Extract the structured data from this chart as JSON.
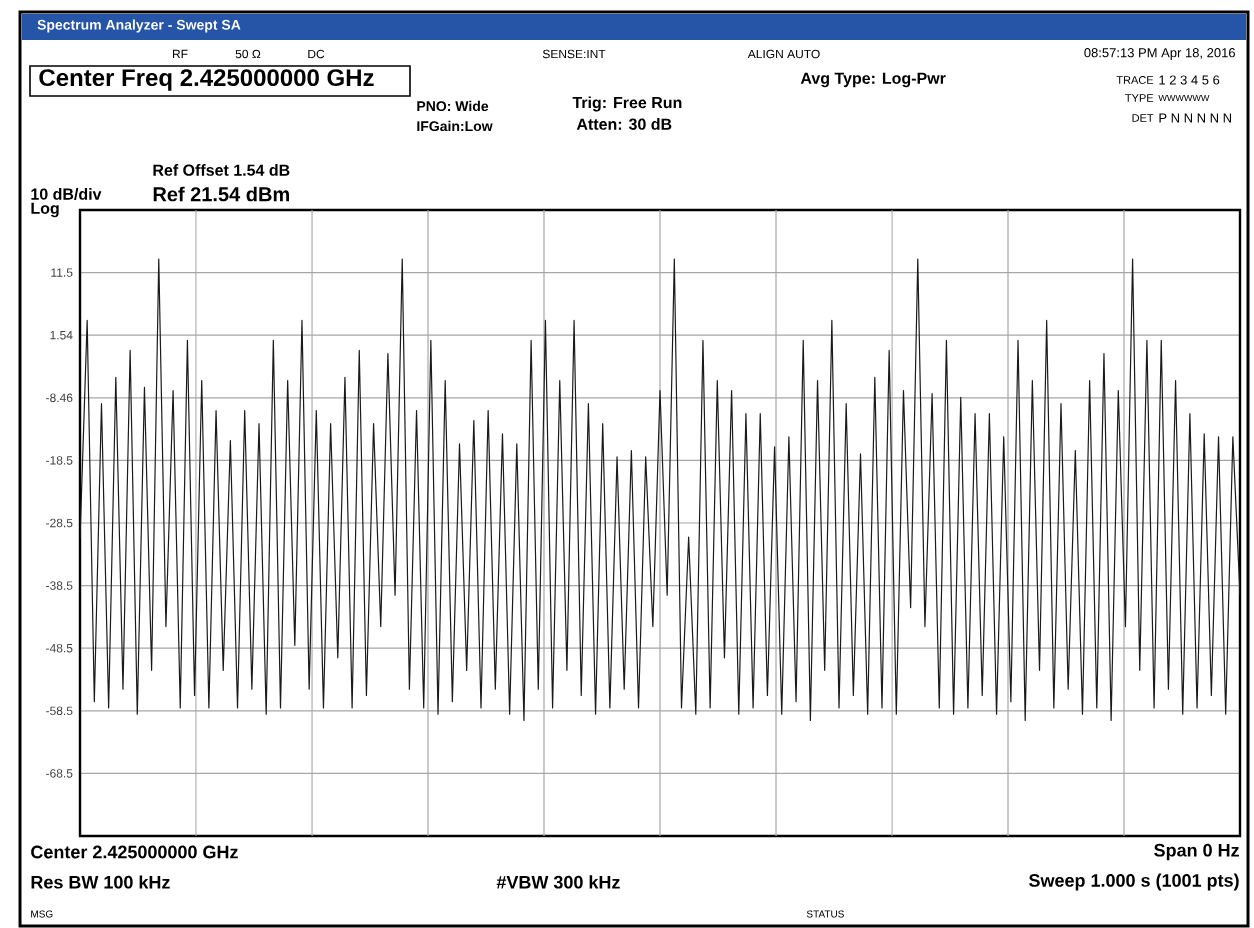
{
  "chart_data": {
    "type": "line",
    "title": "Spectrum Analyzer - Swept SA",
    "annotations": [
      "RF",
      "50 Ω",
      "DC",
      "SENSE:INT",
      "ALIGN AUTO",
      "08:57:13 PM Apr 18, 2016",
      "Center Freq 2.425000000 GHz",
      "PNO: Wide",
      "IFGain:Low",
      "Trig: Free Run",
      "Atten: 30 dB",
      "Avg Type: Log-Pwr",
      "TRACE",
      "1 2 3 4 5 6",
      "TYPE",
      "WWWWWW",
      "DET",
      "P N N N N N",
      "Ref Offset 1.54 dB",
      "10 dB/div",
      "Ref 21.54 dBm",
      "Log",
      "Center 2.425000000 GHz",
      "Span 0 Hz",
      "Res BW 100 kHz",
      "#VBW 300 kHz",
      "Sweep  1.000 s (1001 pts)",
      "MSG",
      "STATUS"
    ],
    "categories": [
      null,
      null,
      null,
      null,
      null,
      null,
      null,
      null,
      null,
      null,
      null,
      null,
      null,
      null,
      null,
      null,
      null,
      null,
      null,
      null,
      null,
      null,
      null,
      null,
      null,
      null,
      null,
      null,
      null,
      null,
      null,
      null,
      null,
      null,
      null,
      null,
      null,
      null,
      null,
      null,
      null,
      null,
      null,
      null,
      null,
      null,
      null,
      null,
      null,
      null,
      null,
      null,
      null,
      null,
      null,
      null,
      null,
      null,
      null,
      null,
      null,
      null,
      null,
      null,
      null,
      null,
      null,
      null,
      null,
      null,
      null,
      null,
      null,
      null,
      null,
      null,
      null,
      null,
      null,
      null,
      null,
      null,
      null,
      null,
      null,
      null,
      null,
      null,
      null,
      null,
      null,
      null,
      null,
      null,
      null,
      null,
      null,
      null,
      null,
      null,
      null,
      null,
      null,
      null,
      null,
      null,
      null,
      null,
      null,
      null,
      null,
      null,
      null,
      null,
      null,
      null,
      null,
      null,
      null,
      null,
      null,
      null,
      null,
      null,
      null,
      null,
      null,
      null,
      null,
      null,
      null,
      null,
      null,
      null,
      null,
      null,
      null,
      null,
      null,
      null,
      null,
      null,
      null,
      null,
      null,
      null,
      null,
      null,
      null,
      null,
      null,
      null,
      null,
      null,
      null,
      null,
      null,
      null,
      null,
      null,
      null,
      null,
      null
    ],
    "series": [
      {
        "color": "#1a1a1a",
        "values": [
          -31,
          3.9,
          -57,
          -9.4,
          -58,
          -5.2,
          -55,
          -0.9,
          -59,
          -6.8,
          -52,
          13.7,
          -45,
          -7.3,
          -58,
          0.7,
          -56,
          -5.7,
          -58,
          -10.5,
          -52,
          -15.3,
          -58,
          -10.5,
          -55,
          -12.6,
          -59,
          0.7,
          -58,
          -5.7,
          -48,
          3.9,
          -55,
          -10.5,
          -58,
          -12.6,
          -50,
          -5.2,
          -58,
          -0.9,
          -56,
          -12.6,
          -45,
          -1.4,
          -40,
          13.7,
          -55,
          -10.5,
          -58,
          0.7,
          -59,
          -5.7,
          -57,
          -15.8,
          -52,
          -12.1,
          -58,
          -10.5,
          -55,
          -14.2,
          -59,
          -15.8,
          -60,
          0.7,
          -55,
          3.9,
          -58,
          -5.7,
          -52,
          3.9,
          -56,
          -9.4,
          -59,
          -12.6,
          -58,
          -17.9,
          -55,
          -16.9,
          -58,
          -17.9,
          -45,
          -7.3,
          -40,
          13.7,
          -58,
          -30.7,
          -59,
          0.7,
          -58,
          -5.7,
          -50,
          -7.3,
          -59,
          -11.0,
          -58,
          -11.0,
          -56,
          -16.3,
          -59,
          -14.7,
          -57,
          0.7,
          -60,
          -5.7,
          -52,
          3.9,
          -58,
          -9.4,
          -56,
          -17.4,
          -59,
          -5.2,
          -58,
          -0.9,
          -59,
          -7.3,
          -42,
          13.7,
          -45,
          -7.8,
          -58,
          0.7,
          -59,
          -8.4,
          -58,
          -11.0,
          -56,
          -11.0,
          -59,
          -14.7,
          -57,
          0.7,
          -60,
          -5.7,
          -52,
          3.9,
          -58,
          -9.4,
          -55,
          -16.9,
          -59,
          -5.7,
          -58,
          -1.4,
          -60,
          -7.3,
          -45,
          13.7,
          -52,
          0.7,
          -58,
          0.7,
          -55,
          -5.7,
          -59,
          -11.0,
          -58,
          -14.2,
          -56,
          -14.7,
          -59,
          -14.7,
          -40
        ]
      }
    ],
    "ylim": [
      -78.46,
      21.54
    ],
    "yticks": [
      {
        "value": 11.54,
        "label": "11.5"
      },
      {
        "value": 1.54,
        "label": "1.54"
      },
      {
        "value": -8.46,
        "label": "-8.46"
      },
      {
        "value": -18.46,
        "label": "-18.5"
      },
      {
        "value": -28.46,
        "label": "-28.5"
      },
      {
        "value": -38.46,
        "label": "-38.5"
      },
      {
        "value": -48.46,
        "label": "-48.5"
      },
      {
        "value": -58.46,
        "label": "-58.5"
      },
      {
        "value": -68.46,
        "label": "-68.5"
      }
    ],
    "grid": true
  }
}
